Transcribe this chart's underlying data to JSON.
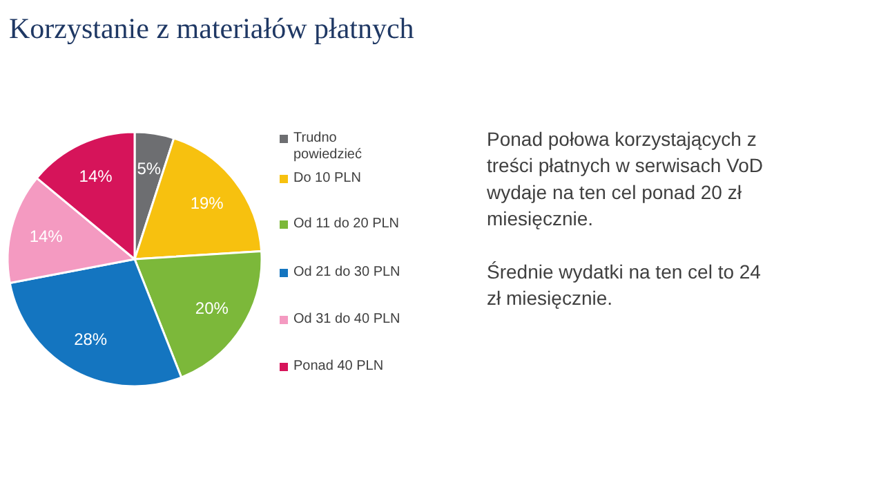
{
  "chart_data": {
    "type": "pie",
    "title": "Korzystanie z materiałów płatnych",
    "categories": [
      "Trudno powiedzieć",
      "Do 10 PLN",
      "Od 11 do 20 PLN",
      "Od 21 do 30 PLN",
      "Od 31 do 40 PLN",
      "Ponad 40 PLN"
    ],
    "values": [
      5,
      19,
      20,
      28,
      14,
      14
    ],
    "colors": [
      "#6d6e71",
      "#f7c10f",
      "#7cb83a",
      "#1475c0",
      "#f49ac1",
      "#d6145a"
    ],
    "value_labels": [
      "5%",
      "19%",
      "20%",
      "28%",
      "14%",
      "14%"
    ],
    "legend": "right",
    "annotations": [
      "Ponad połowa korzystających z treści płatnych w serwisach VoD wydaje na ten cel ponad 20 zł miesięcznie.",
      "Średnie wydatki na ten cel to 24 zł miesięcznie."
    ]
  }
}
